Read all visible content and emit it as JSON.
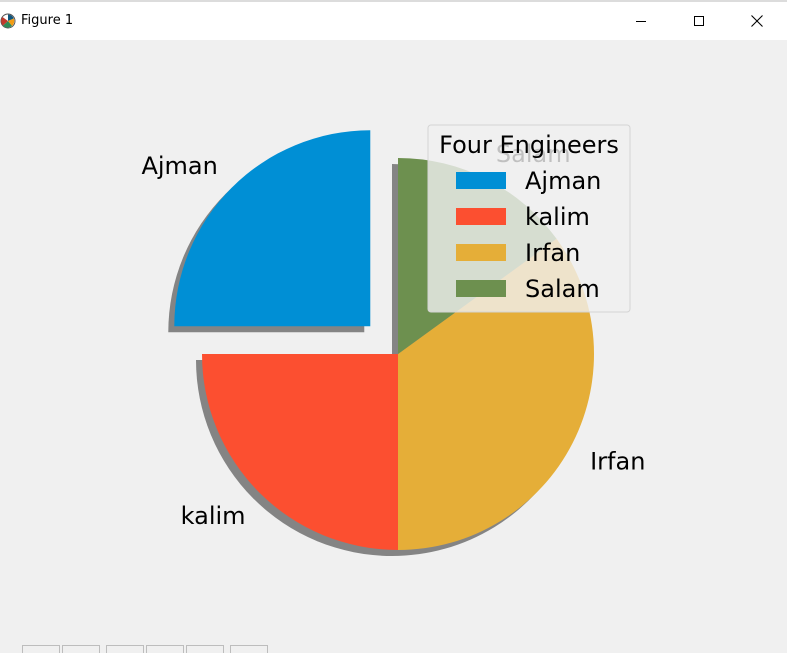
{
  "window": {
    "title": "Figure 1",
    "app_icon": "matplotlib-icon",
    "minimize_icon": "minimize-icon",
    "maximize_icon": "maximize-icon",
    "close_icon": "close-icon"
  },
  "chart_data": {
    "type": "pie",
    "labels": [
      "Ajman",
      "kalim",
      "Irfan",
      "Salam"
    ],
    "values": [
      25,
      25,
      35,
      15
    ],
    "colors": [
      "#008fd5",
      "#fc4f30",
      "#e5ae38",
      "#6d904f"
    ],
    "explode": [
      0.2,
      0,
      0,
      0
    ],
    "start_angle_deg": 90,
    "shadow": true,
    "legend": {
      "title": "Four Engineers",
      "placement": "upper-right",
      "entries": [
        "Ajman",
        "kalim",
        "Irfan",
        "Salam"
      ]
    }
  }
}
